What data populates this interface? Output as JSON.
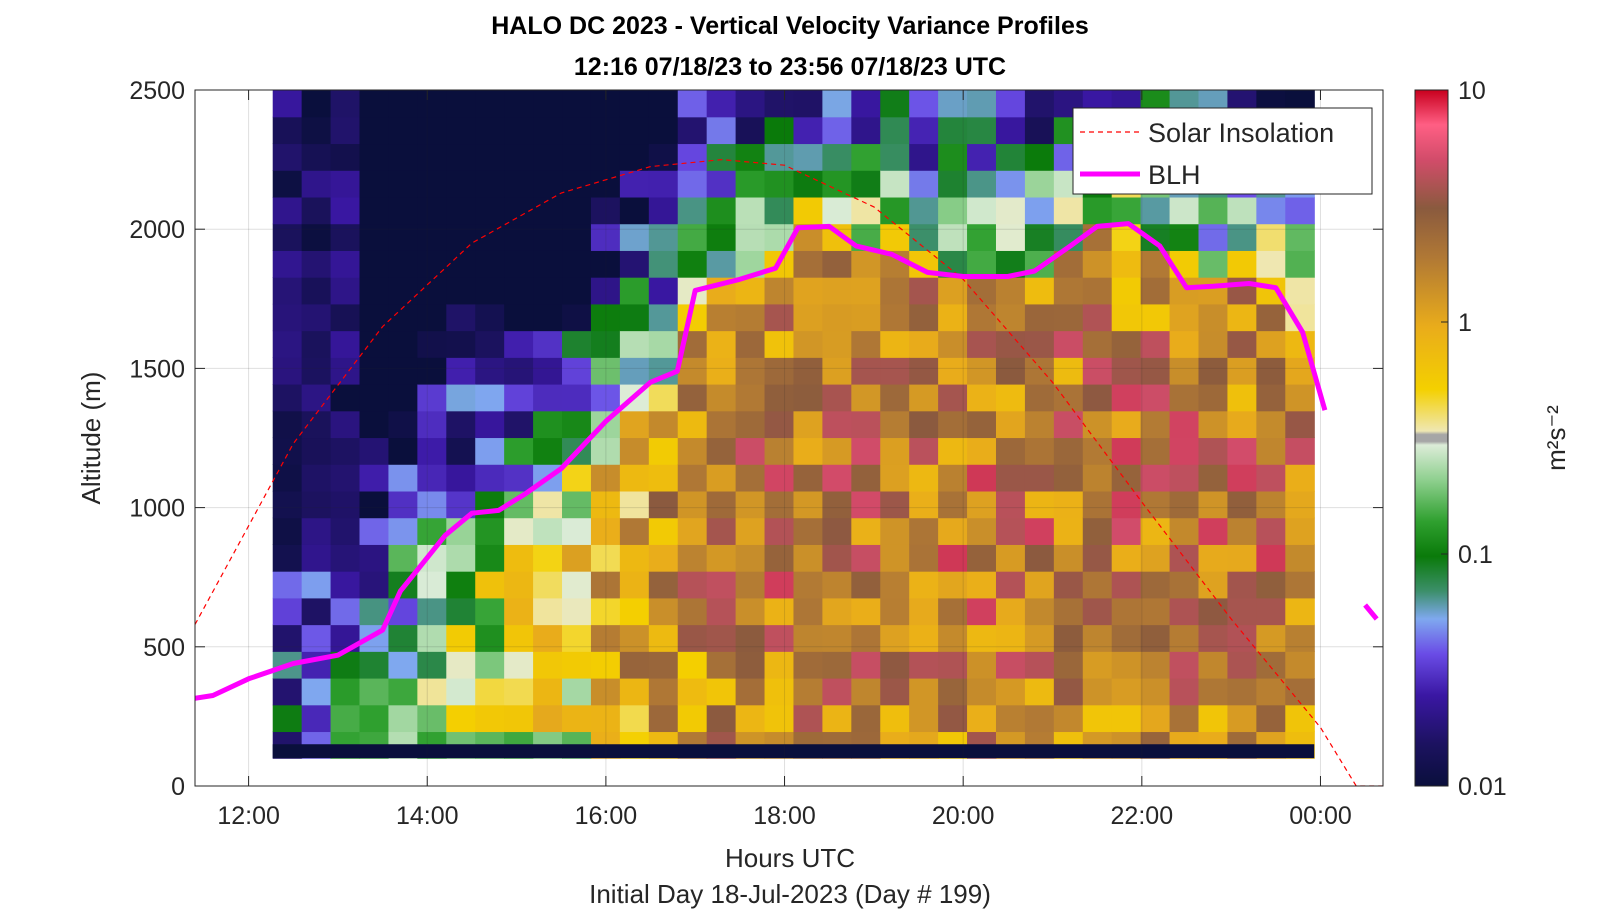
{
  "chart_data": {
    "type": "heatmap",
    "title": "HALO DC 2023 - Vertical Velocity Variance Profiles",
    "subtitle": "12:16 07/18/23 to 23:56 07/18/23  UTC",
    "xlabel": "Hours UTC",
    "xlabel2": "Initial Day 18-Jul-2023 (Day # 199)",
    "ylabel": "Altitude (m)",
    "colorbar_label": "m²s⁻²",
    "xlim": [
      11.4,
      24.7
    ],
    "ylim": [
      0,
      2500
    ],
    "x_ticks": [
      12,
      14,
      16,
      18,
      20,
      22,
      24
    ],
    "x_tick_labels": [
      "12:00",
      "14:00",
      "16:00",
      "18:00",
      "20:00",
      "22:00",
      "00:00"
    ],
    "y_ticks": [
      0,
      500,
      1000,
      1500,
      2000,
      2500
    ],
    "y_tick_labels": [
      "0",
      "500",
      "1000",
      "1500",
      "2000",
      "2500"
    ],
    "colorbar_scale": "log",
    "colorbar_range": [
      0.01,
      10
    ],
    "colorbar_ticks": [
      0.01,
      0.1,
      1,
      10
    ],
    "colorbar_tick_labels": [
      "0.01",
      "0.1",
      "1",
      "10"
    ],
    "grid": true,
    "legend_position": "top-right",
    "heatmap": {
      "time_start": 12.27,
      "time_end": 23.93,
      "altitude_min": 100,
      "altitude_max": 2500,
      "no_data_altitude_min": 100,
      "no_data_altitude_max": 150
    },
    "series": [
      {
        "name": "Solar Insolation",
        "style": "dashed",
        "color": "#ff0000",
        "x": [
          11.4,
          12.5,
          13.5,
          14.5,
          15.5,
          16.5,
          17.3,
          18.0,
          19.0,
          20.0,
          21.0,
          22.0,
          23.0,
          24.0,
          24.4,
          24.7
        ],
        "y": [
          580,
          1230,
          1650,
          1950,
          2130,
          2225,
          2250,
          2230,
          2080,
          1820,
          1450,
          1020,
          600,
          210,
          0,
          0
        ]
      },
      {
        "name": "BLH",
        "style": "solid",
        "color": "#ff00ff",
        "segments": [
          {
            "x": [
              11.4,
              11.6,
              12.0,
              12.5,
              13.0,
              13.5,
              13.7,
              13.9,
              14.2,
              14.5,
              14.8,
              15.1,
              15.5,
              16.0,
              16.5,
              16.8,
              17.0,
              17.5,
              17.9,
              18.15,
              18.5,
              18.8,
              19.2,
              19.6,
              20.0,
              20.5,
              20.8,
              21.2,
              21.5,
              21.85,
              22.2,
              22.5,
              22.8,
              23.2,
              23.5,
              23.8,
              24.05
            ],
            "y": [
              315,
              325,
              385,
              440,
              470,
              560,
              700,
              780,
              900,
              980,
              990,
              1050,
              1140,
              1310,
              1450,
              1490,
              1780,
              1820,
              1860,
              2005,
              2010,
              1940,
              1910,
              1845,
              1830,
              1830,
              1850,
              1940,
              2010,
              2020,
              1940,
              1790,
              1795,
              1805,
              1790,
              1630,
              1350
            ]
          },
          {
            "x": [
              24.5,
              24.63
            ],
            "y": [
              650,
              600
            ]
          }
        ]
      }
    ]
  }
}
